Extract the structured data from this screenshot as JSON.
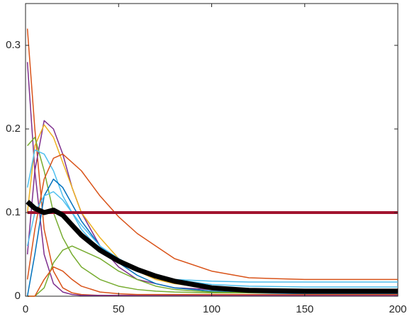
{
  "chart_data": {
    "type": "line",
    "x": [
      1,
      5,
      10,
      15,
      20,
      25,
      30,
      40,
      50,
      60,
      70,
      80,
      100,
      120,
      150,
      200
    ],
    "series": [
      {
        "color": "#D95319",
        "width": 1.5,
        "values": [
          0.32,
          0.2,
          0.08,
          0.03,
          0.01,
          0.004,
          0.002,
          0.001,
          0.001,
          0.001,
          0.001,
          0.001,
          0.001,
          0.001,
          0.001,
          0.001
        ]
      },
      {
        "color": "#7E2F8E",
        "width": 1.5,
        "values": [
          0.28,
          0.15,
          0.05,
          0.015,
          0.005,
          0.002,
          0.001,
          0.001,
          0.001,
          0.001,
          0.001,
          0.001,
          0.001,
          0.001,
          0.001,
          0.001
        ]
      },
      {
        "color": "#7E2F8E",
        "width": 1.5,
        "values": [
          0.05,
          0.15,
          0.21,
          0.2,
          0.17,
          0.13,
          0.1,
          0.06,
          0.035,
          0.02,
          0.015,
          0.01,
          0.008,
          0.006,
          0.005,
          0.005
        ]
      },
      {
        "color": "#EDB120",
        "width": 1.5,
        "values": [
          0.1,
          0.18,
          0.205,
          0.19,
          0.16,
          0.13,
          0.1,
          0.07,
          0.045,
          0.03,
          0.02,
          0.015,
          0.01,
          0.008,
          0.006,
          0.006
        ]
      },
      {
        "color": "#77AC30",
        "width": 1.5,
        "values": [
          0.18,
          0.19,
          0.15,
          0.1,
          0.07,
          0.05,
          0.035,
          0.02,
          0.012,
          0.008,
          0.006,
          0.005,
          0.004,
          0.004,
          0.004,
          0.004
        ]
      },
      {
        "color": "#4DBEEE",
        "width": 1.5,
        "values": [
          0.13,
          0.175,
          0.17,
          0.15,
          0.12,
          0.1,
          0.08,
          0.055,
          0.04,
          0.03,
          0.025,
          0.02,
          0.018,
          0.017,
          0.017,
          0.017
        ]
      },
      {
        "color": "#D95319",
        "width": 1.5,
        "values": [
          0.02,
          0.08,
          0.14,
          0.165,
          0.17,
          0.16,
          0.15,
          0.12,
          0.095,
          0.075,
          0.06,
          0.045,
          0.03,
          0.022,
          0.02,
          0.02
        ]
      },
      {
        "color": "#0072BD",
        "width": 1.5,
        "values": [
          0,
          0.05,
          0.12,
          0.14,
          0.13,
          0.11,
          0.09,
          0.06,
          0.04,
          0.025,
          0.015,
          0.01,
          0.006,
          0.004,
          0.003,
          0.003
        ]
      },
      {
        "color": "#4DBEEE",
        "width": 1.5,
        "values": [
          0.06,
          0.1,
          0.12,
          0.125,
          0.115,
          0.1,
          0.085,
          0.06,
          0.045,
          0.033,
          0.025,
          0.02,
          0.014,
          0.012,
          0.011,
          0.011
        ]
      },
      {
        "color": "#77AC30",
        "width": 1.5,
        "values": [
          0,
          0,
          0.01,
          0.04,
          0.055,
          0.06,
          0.055,
          0.045,
          0.03,
          0.02,
          0.012,
          0.008,
          0.005,
          0.004,
          0.004,
          0.004
        ]
      },
      {
        "color": "#D95319",
        "width": 1.5,
        "values": [
          0,
          0,
          0.02,
          0.035,
          0.03,
          0.02,
          0.012,
          0.005,
          0.003,
          0.002,
          0.002,
          0.002,
          0.002,
          0.002,
          0.002,
          0.002
        ]
      },
      {
        "color": "#A2142F",
        "width": 4,
        "values": [
          0.1,
          0.1,
          0.1,
          0.1,
          0.1,
          0.1,
          0.1,
          0.1,
          0.1,
          0.1,
          0.1,
          0.1,
          0.1,
          0.1,
          0.1,
          0.1
        ]
      },
      {
        "color": "#000000",
        "width": 7,
        "values": [
          0.113,
          0.105,
          0.1,
          0.103,
          0.097,
          0.085,
          0.073,
          0.055,
          0.042,
          0.032,
          0.024,
          0.018,
          0.01,
          0.007,
          0.006,
          0.006
        ]
      }
    ],
    "xlim": [
      0,
      200
    ],
    "xticks": [
      0,
      50,
      100,
      150,
      200
    ],
    "ylim": [
      0,
      0.35
    ],
    "yticks": [
      0,
      0.1,
      0.2,
      0.3
    ]
  }
}
